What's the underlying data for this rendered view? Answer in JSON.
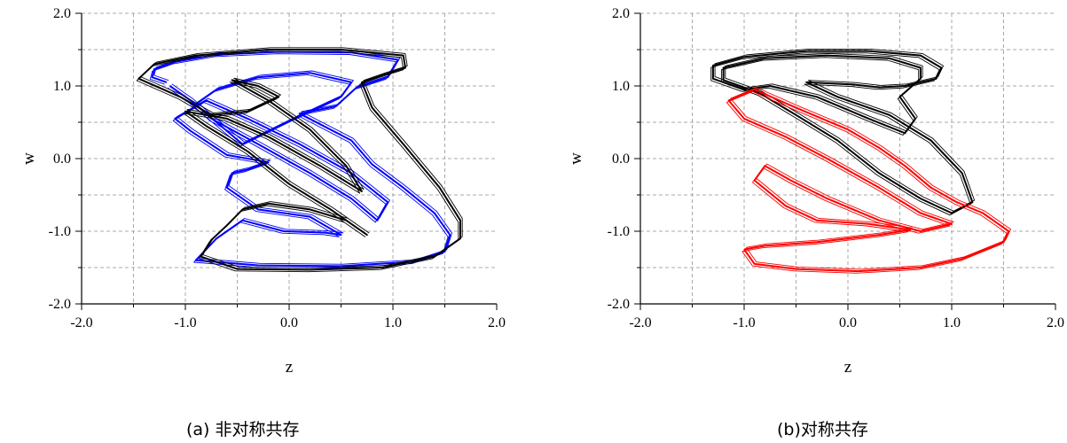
{
  "chart_data": [
    {
      "type": "line",
      "caption": "(a) 非对称共存",
      "xlabel": "z",
      "ylabel": "w",
      "xlim": [
        -2.0,
        2.0
      ],
      "ylim": [
        -2.0,
        2.0
      ],
      "xticks": [
        "-2.0",
        "-1.0",
        "0.0",
        "1.0",
        "2.0"
      ],
      "yticks": [
        "2.0",
        "1.0",
        "0.0",
        "-1.0",
        "-2.0"
      ],
      "grid": true,
      "series": [
        {
          "color": "#0000ff",
          "values": [
            [
              -1.18,
              1.05
            ],
            [
              -1.32,
              1.12
            ],
            [
              -1.3,
              1.23
            ],
            [
              -1.1,
              1.33
            ],
            [
              -0.7,
              1.43
            ],
            [
              -0.1,
              1.47
            ],
            [
              0.6,
              1.46
            ],
            [
              1.05,
              1.36
            ],
            [
              0.95,
              1.12
            ],
            [
              0.65,
              0.98
            ],
            [
              0.45,
              0.72
            ],
            [
              0.1,
              0.62
            ],
            [
              0.6,
              0.25
            ],
            [
              0.8,
              -0.08
            ],
            [
              1.1,
              -0.4
            ],
            [
              1.4,
              -0.75
            ],
            [
              1.55,
              -1.05
            ],
            [
              1.5,
              -1.28
            ],
            [
              1.2,
              -1.42
            ],
            [
              0.5,
              -1.48
            ],
            [
              -0.3,
              -1.47
            ],
            [
              -0.9,
              -1.4
            ],
            [
              -0.7,
              -1.1
            ],
            [
              -0.45,
              -0.85
            ],
            [
              -0.05,
              -1.0
            ],
            [
              0.35,
              -1.02
            ],
            [
              0.5,
              -1.05
            ],
            [
              0.2,
              -0.8
            ],
            [
              -0.3,
              -0.7
            ],
            [
              -0.6,
              -0.4
            ],
            [
              -0.55,
              -0.2
            ],
            [
              -0.4,
              -0.15
            ],
            [
              -0.2,
              -0.05
            ],
            [
              -0.6,
              0.05
            ],
            [
              -0.95,
              0.38
            ],
            [
              -1.1,
              0.55
            ],
            [
              -0.8,
              0.8
            ],
            [
              -0.4,
              0.55
            ],
            [
              0.1,
              0.2
            ],
            [
              0.6,
              -0.2
            ],
            [
              0.95,
              -0.6
            ],
            [
              0.85,
              -0.85
            ],
            [
              0.6,
              -0.55
            ],
            [
              0.2,
              -0.2
            ],
            [
              -0.3,
              0.2
            ],
            [
              -0.75,
              0.55
            ],
            [
              -0.9,
              0.75
            ],
            [
              -0.7,
              0.95
            ],
            [
              -0.3,
              1.12
            ],
            [
              0.2,
              1.18
            ],
            [
              0.6,
              1.05
            ],
            [
              0.5,
              0.85
            ],
            [
              0.05,
              0.55
            ],
            [
              -0.45,
              0.2
            ],
            [
              -0.95,
              0.8
            ],
            [
              -1.15,
              1.0
            ]
          ]
        },
        {
          "color": "#000000",
          "values": [
            [
              -1.05,
              0.85
            ],
            [
              -1.45,
              1.1
            ],
            [
              -1.3,
              1.3
            ],
            [
              -0.9,
              1.42
            ],
            [
              -0.2,
              1.5
            ],
            [
              0.5,
              1.5
            ],
            [
              1.1,
              1.42
            ],
            [
              1.12,
              1.25
            ],
            [
              0.9,
              1.15
            ],
            [
              0.7,
              1.05
            ],
            [
              0.8,
              0.7
            ],
            [
              1.1,
              0.2
            ],
            [
              1.45,
              -0.4
            ],
            [
              1.65,
              -0.85
            ],
            [
              1.65,
              -1.1
            ],
            [
              1.4,
              -1.35
            ],
            [
              0.9,
              -1.5
            ],
            [
              0.2,
              -1.53
            ],
            [
              -0.5,
              -1.52
            ],
            [
              -0.85,
              -1.35
            ],
            [
              -0.75,
              -1.12
            ],
            [
              -0.6,
              -0.92
            ],
            [
              -0.45,
              -0.7
            ],
            [
              -0.2,
              -0.62
            ],
            [
              0.2,
              -0.7
            ],
            [
              0.55,
              -0.85
            ],
            [
              0.75,
              -1.05
            ],
            [
              0.4,
              -0.7
            ],
            [
              0.0,
              -0.35
            ],
            [
              -0.4,
              0.1
            ],
            [
              -0.8,
              0.45
            ],
            [
              -1.0,
              0.65
            ],
            [
              -0.6,
              0.55
            ],
            [
              -0.2,
              0.3
            ],
            [
              0.3,
              -0.1
            ],
            [
              0.7,
              -0.45
            ],
            [
              0.55,
              -0.1
            ],
            [
              0.2,
              0.4
            ],
            [
              -0.2,
              0.8
            ],
            [
              -0.55,
              1.08
            ],
            [
              -0.3,
              1.0
            ],
            [
              -0.1,
              0.85
            ],
            [
              -0.4,
              0.65
            ],
            [
              -0.75,
              0.6
            ],
            [
              -1.05,
              0.85
            ]
          ]
        }
      ]
    },
    {
      "type": "line",
      "caption": "(b)对称共存",
      "xlabel": "z",
      "ylabel": "w",
      "xlim": [
        -2.0,
        2.0
      ],
      "ylim": [
        -2.0,
        2.0
      ],
      "xticks": [
        "-2.0",
        "-1.0",
        "0.0",
        "1.0",
        "2.0"
      ],
      "yticks": [
        "2.0",
        "1.0",
        "0.0",
        "-1.0",
        "-2.0"
      ],
      "grid": true,
      "series": [
        {
          "color": "#000000",
          "values": [
            [
              -1.0,
              0.95
            ],
            [
              -1.3,
              1.1
            ],
            [
              -1.3,
              1.28
            ],
            [
              -1.0,
              1.4
            ],
            [
              -0.4,
              1.48
            ],
            [
              0.2,
              1.48
            ],
            [
              0.7,
              1.42
            ],
            [
              0.9,
              1.25
            ],
            [
              0.85,
              1.1
            ],
            [
              0.55,
              1.0
            ],
            [
              0.3,
              0.98
            ],
            [
              0.05,
              1.02
            ],
            [
              -0.4,
              1.05
            ],
            [
              -0.1,
              0.85
            ],
            [
              0.4,
              0.6
            ],
            [
              0.8,
              0.25
            ],
            [
              1.1,
              -0.2
            ],
            [
              1.2,
              -0.6
            ],
            [
              1.0,
              -0.75
            ],
            [
              0.7,
              -0.55
            ],
            [
              0.3,
              -0.2
            ],
            [
              -0.1,
              0.25
            ],
            [
              -0.5,
              0.6
            ],
            [
              -0.85,
              0.9
            ],
            [
              -1.2,
              1.08
            ],
            [
              -1.2,
              1.25
            ],
            [
              -0.8,
              1.38
            ],
            [
              -0.2,
              1.42
            ],
            [
              0.4,
              1.38
            ],
            [
              0.7,
              1.25
            ],
            [
              0.7,
              1.1
            ],
            [
              0.5,
              0.85
            ],
            [
              0.65,
              0.55
            ],
            [
              0.55,
              0.35
            ],
            [
              0.2,
              0.55
            ],
            [
              -0.3,
              0.85
            ],
            [
              -0.75,
              1.0
            ],
            [
              -1.0,
              0.95
            ]
          ]
        },
        {
          "color": "#ff0000",
          "values": [
            [
              -1.0,
              -1.25
            ],
            [
              -0.9,
              -1.45
            ],
            [
              -0.5,
              -1.52
            ],
            [
              0.1,
              -1.55
            ],
            [
              0.7,
              -1.5
            ],
            [
              1.1,
              -1.38
            ],
            [
              1.5,
              -1.15
            ],
            [
              1.55,
              -1.0
            ],
            [
              1.3,
              -0.75
            ],
            [
              1.05,
              -0.6
            ],
            [
              0.8,
              -0.4
            ],
            [
              0.55,
              -0.1
            ],
            [
              0.3,
              0.15
            ],
            [
              0.0,
              0.4
            ],
            [
              -0.5,
              0.7
            ],
            [
              -0.9,
              0.95
            ],
            [
              -1.15,
              0.8
            ],
            [
              -1.0,
              0.55
            ],
            [
              -0.6,
              0.3
            ],
            [
              -0.2,
              0.0
            ],
            [
              0.3,
              -0.4
            ],
            [
              0.7,
              -0.75
            ],
            [
              1.0,
              -0.9
            ],
            [
              0.7,
              -1.0
            ],
            [
              0.3,
              -0.85
            ],
            [
              -0.2,
              -0.55
            ],
            [
              -0.55,
              -0.3
            ],
            [
              -0.8,
              -0.1
            ],
            [
              -0.9,
              -0.3
            ],
            [
              -0.6,
              -0.65
            ],
            [
              -0.3,
              -0.85
            ],
            [
              0.2,
              -0.9
            ],
            [
              0.6,
              -0.98
            ],
            [
              0.3,
              -1.05
            ],
            [
              -0.3,
              -1.15
            ],
            [
              -0.8,
              -1.2
            ],
            [
              -1.0,
              -1.25
            ]
          ]
        }
      ]
    }
  ]
}
